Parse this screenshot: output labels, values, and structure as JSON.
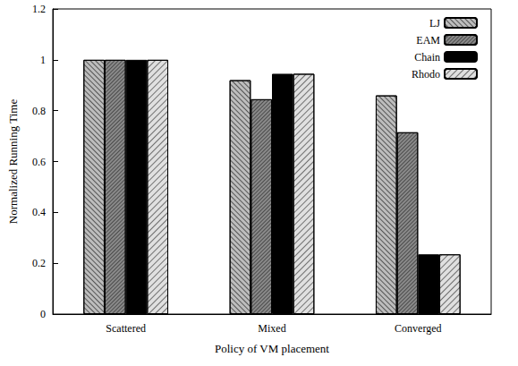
{
  "chart_data": {
    "type": "bar",
    "x_label": "Policy of VM placement",
    "y_label": "Normalized Running Time",
    "categories": [
      "Scattered",
      "Mixed",
      "Converged"
    ],
    "series": [
      {
        "name": "LJ",
        "color": "#bdbdbd",
        "values": [
          1,
          0.92,
          0.86
        ]
      },
      {
        "name": "EAM",
        "color": "#8a8a8a",
        "values": [
          1,
          0.845,
          0.715
        ]
      },
      {
        "name": "Chain",
        "color": "#000000",
        "values": [
          1,
          0.945,
          0.235
        ]
      },
      {
        "name": "Rhodo",
        "color": "#e0e0e0",
        "values": [
          1,
          0.945,
          0.235
        ]
      }
    ],
    "ylim": [
      0,
      1.2
    ],
    "yticks": [
      0,
      0.2,
      0.4,
      0.6,
      0.8,
      1,
      1.2
    ],
    "grid": false,
    "legend": "top-right"
  }
}
